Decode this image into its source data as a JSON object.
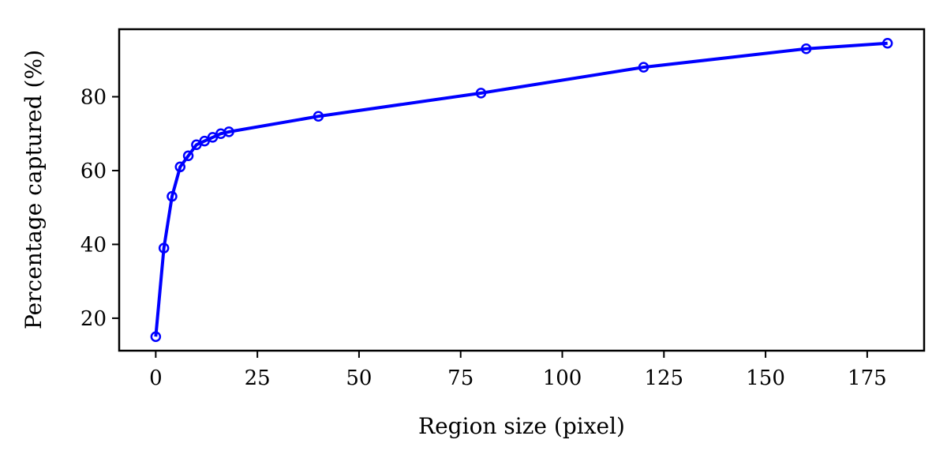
{
  "chart_data": {
    "type": "line",
    "title": "",
    "xlabel": "Region size (pixel)",
    "ylabel": "Percentage captured (%)",
    "xlim": [
      -9,
      189
    ],
    "ylim": [
      11.2,
      98.3
    ],
    "xticks": [
      0,
      25,
      50,
      75,
      100,
      125,
      150,
      175
    ],
    "yticks": [
      20,
      40,
      60,
      80
    ],
    "grid": false,
    "legend": "none",
    "series": [
      {
        "color": "#0000ff",
        "marker": "open-circle",
        "x": [
          0,
          2,
          4,
          6,
          8,
          10,
          12,
          14,
          16,
          18,
          40,
          80,
          120,
          160,
          180
        ],
        "y": [
          15,
          39,
          53,
          61,
          64,
          67,
          68,
          69,
          70,
          70.5,
          74.7,
          81,
          88,
          93,
          94.5
        ]
      }
    ]
  }
}
